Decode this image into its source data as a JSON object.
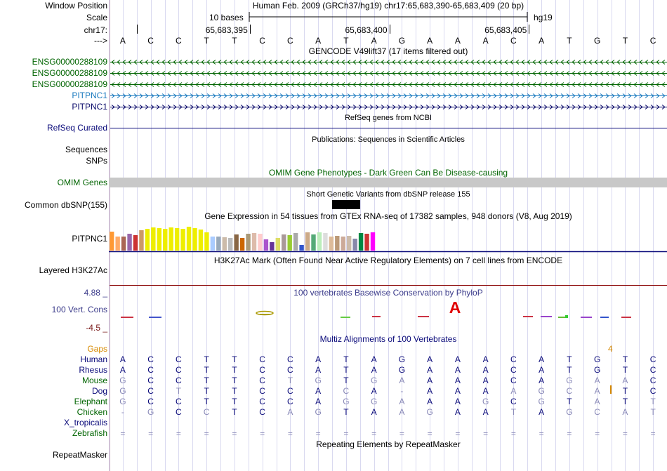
{
  "header": {
    "window_position_label": "Window Position",
    "scale_label": "Scale",
    "chrom_label": "chr17:",
    "arrow_label": "--->",
    "assembly_title": "Human Feb. 2009 (GRCh37/hg19)   chr17:65,683,390-65,683,409 (20 bp)",
    "scale_text": "10 bases",
    "db_label": "hg19",
    "ruler_ticks": [
      "65,683,395",
      "65,683,400",
      "65,683,405"
    ],
    "sequence": [
      "A",
      "C",
      "C",
      "T",
      "T",
      "C",
      "C",
      "A",
      "T",
      "A",
      "G",
      "A",
      "A",
      "A",
      "C",
      "A",
      "T",
      "G",
      "T",
      "C"
    ]
  },
  "colors": {
    "grid": "#d9d9f0",
    "ensembl_green": "#006400",
    "pitpnc1_blue": "#1a7abf",
    "navy": "#0a0a7a",
    "omim_green": "#006400",
    "gaps_orange": "#d78a00",
    "h3k27ac_red": "#880000",
    "cons_navy": "#3a3a8a"
  },
  "gencode": {
    "title": "GENCODE V49lift37 (17 items filtered out)",
    "tracks": [
      {
        "label": "ENSG00000288109",
        "strand": "minus",
        "color": "#006400"
      },
      {
        "label": "ENSG00000288109",
        "strand": "minus",
        "color": "#006400"
      },
      {
        "label": "ENSG00000288109",
        "strand": "minus",
        "color": "#006400"
      },
      {
        "label": "PITPNC1",
        "strand": "plus",
        "color": "#1a7abf"
      },
      {
        "label": "PITPNC1",
        "strand": "plus",
        "color": "#0a0a6a"
      }
    ]
  },
  "refseq": {
    "title": "RefSeq genes from NCBI",
    "label": "RefSeq Curated"
  },
  "publications": {
    "title": "Publications: Sequences in Scientific Articles",
    "label1": "Sequences",
    "label2": "SNPs"
  },
  "omim": {
    "title": "OMIM Gene Phenotypes - Dark Green Can Be Disease-causing",
    "label": "OMIM Genes"
  },
  "dbsnp": {
    "title": "Short Genetic Variants from dbSNP release 155",
    "label": "Common dbSNP(155)"
  },
  "gtex": {
    "title": "Gene Expression in 54 tissues from GTEx RNA-seq of 17382 samples, 948 donors (V8, Aug 2019)",
    "label": "PITPNC1",
    "bars": [
      {
        "v": 0.82,
        "c": "#ff9933"
      },
      {
        "v": 0.6,
        "c": "#ffaa66"
      },
      {
        "v": 0.62,
        "c": "#aa6655"
      },
      {
        "v": 0.72,
        "c": "#9966aa"
      },
      {
        "v": 0.68,
        "c": "#cc3333"
      },
      {
        "v": 0.88,
        "c": "#cc9966"
      },
      {
        "v": 0.95,
        "c": "#eeee00"
      },
      {
        "v": 1.0,
        "c": "#eeee00"
      },
      {
        "v": 0.98,
        "c": "#eeee00"
      },
      {
        "v": 0.95,
        "c": "#eeee00"
      },
      {
        "v": 1.0,
        "c": "#eeee00"
      },
      {
        "v": 0.96,
        "c": "#eeee00"
      },
      {
        "v": 0.94,
        "c": "#eeee00"
      },
      {
        "v": 1.02,
        "c": "#eeee00"
      },
      {
        "v": 0.96,
        "c": "#eeee00"
      },
      {
        "v": 0.9,
        "c": "#eeee00"
      },
      {
        "v": 0.78,
        "c": "#eeee00"
      },
      {
        "v": 0.62,
        "c": "#aaccff"
      },
      {
        "v": 0.6,
        "c": "#99aabb"
      },
      {
        "v": 0.58,
        "c": "#ccbbaa"
      },
      {
        "v": 0.55,
        "c": "#bbbbbb"
      },
      {
        "v": 0.7,
        "c": "#886644"
      },
      {
        "v": 0.55,
        "c": "#cc6600"
      },
      {
        "v": 0.72,
        "c": "#aa9977"
      },
      {
        "v": 0.75,
        "c": "#ddbbaa"
      },
      {
        "v": 0.72,
        "c": "#ffcccc"
      },
      {
        "v": 0.48,
        "c": "#aa55cc"
      },
      {
        "v": 0.35,
        "c": "#663399"
      },
      {
        "v": 0.55,
        "c": "#dddd66"
      },
      {
        "v": 0.7,
        "c": "#aa9999"
      },
      {
        "v": 0.68,
        "c": "#99cc33"
      },
      {
        "v": 0.75,
        "c": "#aaaaaa"
      },
      {
        "v": 0.25,
        "c": "#3355cc"
      },
      {
        "v": 0.78,
        "c": "#ccaa88"
      },
      {
        "v": 0.7,
        "c": "#55aa77"
      },
      {
        "v": 0.8,
        "c": "#bbeebb"
      },
      {
        "v": 0.75,
        "c": "#dddddd"
      },
      {
        "v": 0.6,
        "c": "#ddbb99"
      },
      {
        "v": 0.65,
        "c": "#bb9977"
      },
      {
        "v": 0.6,
        "c": "#ccaa99"
      },
      {
        "v": 0.65,
        "c": "#ccbbaa"
      },
      {
        "v": 0.5,
        "c": "#8888aa"
      },
      {
        "v": 0.75,
        "c": "#008844"
      },
      {
        "v": 0.72,
        "c": "#cc3333"
      },
      {
        "v": 0.78,
        "c": "#ff00ff"
      }
    ]
  },
  "h3k27ac": {
    "title": "H3K27Ac Mark (Often Found Near Active Regulatory Elements) on 7 cell lines from ENCODE",
    "label": "Layered H3K27Ac"
  },
  "conservation": {
    "title": "100 vertebrates Basewise Conservation by PhyloP",
    "label": "100 Vert. Cons",
    "max_label": "4.88 _",
    "min_label": "-4.5 _",
    "highlight_base": "A"
  },
  "multiz": {
    "title": "Multiz Alignments of 100 Vertebrates",
    "gaps_label": "Gaps",
    "gap_count": "4",
    "species": [
      {
        "name": "Human",
        "color": "#0a0a7a",
        "bases": [
          "A",
          "C",
          "C",
          "T",
          "T",
          "C",
          "C",
          "A",
          "T",
          "A",
          "G",
          "A",
          "A",
          "A",
          "C",
          "A",
          "T",
          "G",
          "T",
          "C"
        ]
      },
      {
        "name": "Rhesus",
        "color": "#0a0a7a",
        "bases": [
          "A",
          "C",
          "C",
          "T",
          "T",
          "C",
          "C",
          "A",
          "T",
          "A",
          "G",
          "A",
          "A",
          "A",
          "C",
          "A",
          "T",
          "G",
          "T",
          "C"
        ]
      },
      {
        "name": "Mouse",
        "color": "#006400",
        "bases": [
          "G",
          "C",
          "C",
          "T",
          "T",
          "C",
          "T",
          "G",
          "T",
          "G",
          "A",
          "A",
          "A",
          "A",
          "C",
          "A",
          "G",
          "A",
          "A",
          "C"
        ]
      },
      {
        "name": "Dog",
        "color": "#0a0a7a",
        "bases": [
          "G",
          "C",
          "T",
          "T",
          "T",
          "C",
          "C",
          "A",
          "C",
          "A",
          "-",
          "A",
          "A",
          "A",
          "A",
          "G",
          "C",
          "A",
          "T",
          "C"
        ]
      },
      {
        "name": "Elephant",
        "color": "#006400",
        "bases": [
          "G",
          "C",
          "C",
          "T",
          "T",
          "C",
          "C",
          "A",
          "G",
          "G",
          "A",
          "A",
          "A",
          "G",
          "C",
          "G",
          "T",
          "A",
          "T",
          "T"
        ]
      },
      {
        "name": "Chicken",
        "color": "#006400",
        "bases": [
          "-",
          "G",
          "C",
          "C",
          "T",
          "C",
          "A",
          "G",
          "T",
          "A",
          "A",
          "G",
          "A",
          "A",
          "T",
          "A",
          "G",
          "C",
          "A",
          "T"
        ]
      },
      {
        "name": "X_tropicalis",
        "color": "#0a0a7a",
        "bases": []
      },
      {
        "name": "Zebrafish",
        "color": "#006400",
        "bases": [
          "=",
          "=",
          "=",
          "=",
          "=",
          "=",
          "=",
          "=",
          "=",
          "=",
          "=",
          "=",
          "=",
          "=",
          "=",
          "=",
          "=",
          "=",
          "=",
          "="
        ]
      }
    ]
  },
  "repeatmasker": {
    "title": "Repeating Elements by RepeatMasker",
    "label": "RepeatMasker"
  }
}
